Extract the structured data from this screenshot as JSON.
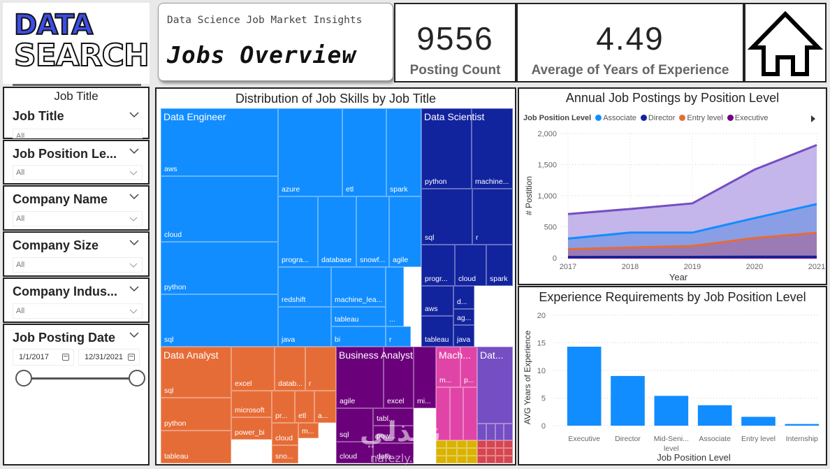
{
  "logo": {
    "line1": "DATA",
    "line2": "SEARCH"
  },
  "header": {
    "subtitle": "Data Science Job Market Insights",
    "title": "Jobs Overview"
  },
  "kpis": {
    "posting_count": {
      "value": "9556",
      "label": "Posting Count"
    },
    "avg_experience": {
      "value": "4.49",
      "label": "Average of Years of Experience"
    }
  },
  "home_button": {
    "icon": "home-icon"
  },
  "slicers": {
    "job_title": {
      "caption": "Job Title",
      "header": "Job Title",
      "value": "All"
    },
    "job_position_level": {
      "header": "Job Position Le...",
      "value": "All"
    },
    "company_name": {
      "header": "Company Name",
      "value": "All"
    },
    "company_size": {
      "header": "Company Size",
      "value": "All"
    },
    "company_industry": {
      "header": "Company Indus...",
      "value": "All"
    },
    "job_posting_date": {
      "header": "Job Posting Date",
      "start": "1/1/2017",
      "end": "12/31/2021"
    }
  },
  "treemap": {
    "title": "Distribution of Job Skills by Job Title",
    "groups": [
      {
        "name": "Data Engineer",
        "color": "#118dff",
        "skills": [
          "aws",
          "cloud",
          "python",
          "sql",
          "azure",
          "etl",
          "spark",
          "progra...",
          "database",
          "snowf...",
          "agile",
          "redshift",
          "java",
          "machine_lea...",
          "tableau",
          "bi",
          "...",
          "r"
        ]
      },
      {
        "name": "Data Scientist",
        "color": "#12239e",
        "skills": [
          "python",
          "machine...",
          "sql",
          "r",
          "progr...",
          "cloud",
          "spark",
          "aws",
          "tableau",
          "d...",
          "ag...",
          "java"
        ]
      },
      {
        "name": "Data Analyst",
        "color": "#e66c37",
        "skills": [
          "sql",
          "python",
          "tableau",
          "excel",
          "datab...",
          "r",
          "microsoft",
          "bi",
          "power_bi",
          "pr...",
          "etl",
          "a...",
          "cloud",
          "m...",
          "sno..."
        ]
      },
      {
        "name": "Business Analyst",
        "color": "#6b007b",
        "skills": [
          "agile",
          "excel",
          "mi...",
          "sql",
          "cloud",
          "tabl...",
          "pow...",
          "data..."
        ]
      },
      {
        "name": "Mach...",
        "color": "#e044a7",
        "skills": [
          "m...",
          "p..."
        ]
      },
      {
        "name": "Dat...",
        "color": "#744ec2",
        "skills": []
      },
      {
        "name": "",
        "color": "#d9b300",
        "skills": []
      },
      {
        "name": "",
        "color": "#d64550",
        "skills": []
      }
    ]
  },
  "chart_data": [
    {
      "type": "area",
      "title": "Annual Job Postings by Position Level",
      "legend_title": "Job Position Level",
      "legend_position": "top-left",
      "xlabel": "Year",
      "ylabel": "# Postition",
      "x": [
        "2017",
        "2018",
        "2019",
        "2020",
        "2021"
      ],
      "ylim": [
        0,
        2000
      ],
      "yticks": [
        "0",
        "500",
        "1,000",
        "1,500",
        "2,000"
      ],
      "stacked": true,
      "series": [
        {
          "name": "Executive",
          "color": "#6b007b",
          "values": [
            5,
            5,
            5,
            5,
            5
          ]
        },
        {
          "name": "Director",
          "color": "#12239e",
          "values": [
            10,
            12,
            12,
            15,
            15
          ]
        },
        {
          "name": "Entry level",
          "color": "#e66c37",
          "values": [
            125,
            150,
            175,
            300,
            385
          ]
        },
        {
          "name": "Associate",
          "color": "#118dff",
          "values": [
            170,
            240,
            215,
            320,
            460
          ]
        },
        {
          "name": "Mid-Senior level",
          "color": "#744ec2",
          "values": [
            395,
            380,
            470,
            780,
            950
          ]
        }
      ],
      "totals": [
        705,
        787,
        877,
        1420,
        1815
      ],
      "legend_items": [
        "Associate",
        "Director",
        "Entry level",
        "Executive"
      ],
      "legend_colors": [
        "#118dff",
        "#12239e",
        "#e66c37",
        "#6b007b"
      ]
    },
    {
      "type": "bar",
      "title": "Experience Requirements by Job Position Level",
      "xlabel": "Job Position Level",
      "ylabel": "AVG Years of Experience",
      "categories": [
        "Executive",
        "Director",
        "Mid-Seni... level",
        "Associate",
        "Entry level",
        "Internship"
      ],
      "values": [
        14.3,
        9.0,
        5.4,
        3.7,
        1.6,
        0.3
      ],
      "ylim": [
        0,
        20
      ],
      "yticks": [
        "0",
        "5",
        "10",
        "15",
        "20"
      ],
      "color": "#118dff",
      "grid": true
    }
  ]
}
